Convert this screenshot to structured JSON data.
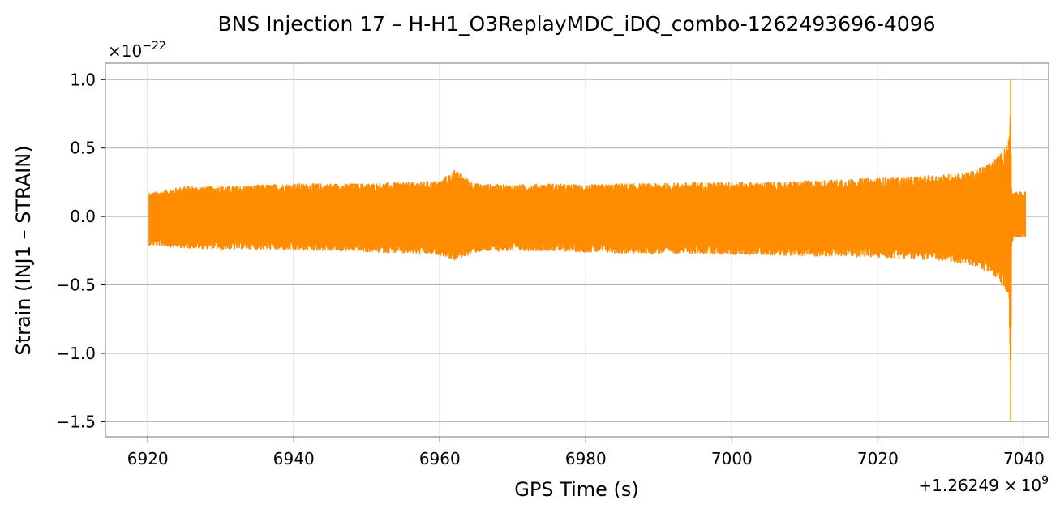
{
  "chart_data": {
    "type": "line",
    "title": "BNS Injection 17 – H-H1_O3ReplayMDC_iDQ_combo-1262493696-4096",
    "xlabel": "GPS Time (s)",
    "ylabel": "Strain (INJ1 – STRAIN)",
    "x_offset_label": {
      "prefix": "+1.26249",
      "times": "×",
      "base": "10",
      "exp": "9"
    },
    "y_scale_label": {
      "times": "×",
      "base": "10",
      "exp": "−22"
    },
    "xlim": [
      6914.2,
      7043.4
    ],
    "ylim": [
      -1.61,
      1.12
    ],
    "xticks": [
      6920,
      6940,
      6960,
      6980,
      7000,
      7020,
      7040
    ],
    "xtick_labels": [
      "6920",
      "6940",
      "6960",
      "6980",
      "7000",
      "7020",
      "7040"
    ],
    "yticks": [
      1.0,
      0.5,
      0.0,
      -0.5,
      -1.0,
      -1.5
    ],
    "ytick_labels": [
      "1.0",
      "0.5",
      "0.0",
      "−0.5",
      "−1.0",
      "−1.5"
    ],
    "grid": true,
    "series": [
      {
        "color": "#ff8c00",
        "x_range": [
          6920.2,
          7040.2
        ],
        "envelope": {
          "x": [
            6920.2,
            6925,
            6930,
            6935,
            6940,
            6945,
            6950,
            6955,
            6960,
            6962,
            6965,
            6970,
            6975,
            6980,
            6985,
            6990,
            6995,
            7000,
            7005,
            7010,
            7015,
            7020,
            7025,
            7030,
            7033,
            7035,
            7036,
            7037,
            7037.6,
            7038.0,
            7038.2,
            7038.3,
            7038.5,
            7039,
            7040.2
          ],
          "upper": [
            0.17,
            0.22,
            0.22,
            0.23,
            0.24,
            0.24,
            0.24,
            0.25,
            0.26,
            0.34,
            0.24,
            0.23,
            0.24,
            0.23,
            0.24,
            0.24,
            0.25,
            0.25,
            0.25,
            0.26,
            0.27,
            0.28,
            0.29,
            0.31,
            0.33,
            0.38,
            0.42,
            0.47,
            0.52,
            0.58,
            1.0,
            0.2,
            0.17,
            0.18,
            0.18
          ],
          "lower": [
            -0.21,
            -0.23,
            -0.24,
            -0.24,
            -0.25,
            -0.25,
            -0.26,
            -0.27,
            -0.28,
            -0.32,
            -0.26,
            -0.25,
            -0.25,
            -0.26,
            -0.27,
            -0.27,
            -0.27,
            -0.28,
            -0.28,
            -0.29,
            -0.29,
            -0.3,
            -0.31,
            -0.33,
            -0.36,
            -0.4,
            -0.44,
            -0.5,
            -0.55,
            -0.6,
            -1.5,
            -0.22,
            -0.16,
            -0.15,
            -0.15
          ]
        }
      }
    ]
  }
}
